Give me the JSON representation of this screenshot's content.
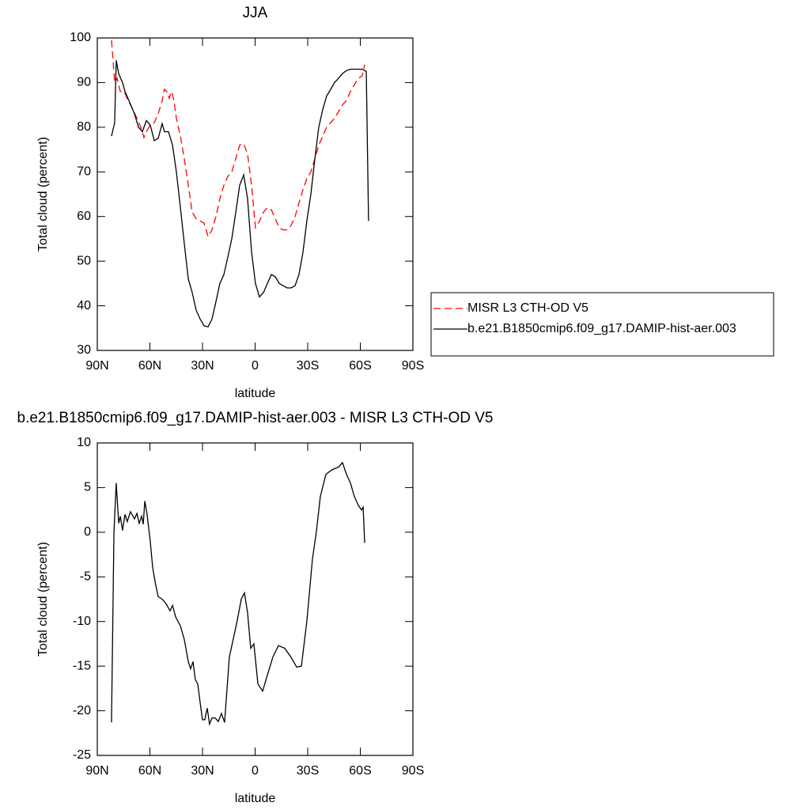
{
  "chart_data": [
    {
      "type": "line",
      "title": "JJA",
      "xlabel": "latitude",
      "ylabel": "Total cloud (percent)",
      "xlim": [
        90,
        -90
      ],
      "xticks": [
        {
          "value": 90,
          "label": "90N"
        },
        {
          "value": 60,
          "label": "60N"
        },
        {
          "value": 30,
          "label": "30N"
        },
        0,
        {
          "value": -30,
          "label": "30S"
        },
        {
          "value": -60,
          "label": "60S"
        },
        {
          "value": -90,
          "label": "90S"
        }
      ],
      "ylim": [
        30,
        100
      ],
      "yticks": [
        30,
        40,
        50,
        60,
        70,
        80,
        90,
        100
      ],
      "legend": "right",
      "series": [
        {
          "name": "MISR L3 CTH-OD V5",
          "color": "#ff0000",
          "line_style": "dashed",
          "x": [
            81.9,
            81,
            80.1,
            78.7,
            76.9,
            74.7,
            72.4,
            69.7,
            67.4,
            65.2,
            63.4,
            62,
            59.8,
            57.5,
            55.3,
            53,
            51.7,
            50.3,
            49,
            47.6,
            46.3,
            44.9,
            42.6,
            40.4,
            38.1,
            35.9,
            33.6,
            31.3,
            29.1,
            26.8,
            24.6,
            22.3,
            20.1,
            17.8,
            15.5,
            13.3,
            11,
            8.8,
            6.5,
            4.3,
            2,
            -0.2,
            -2.5,
            -4.8,
            -7,
            -9.3,
            -11.5,
            -13.8,
            -16,
            -18.3,
            -20.5,
            -22.8,
            -25,
            -27.3,
            -29.5,
            -31.8,
            -34.1,
            -36.3,
            -38.6,
            -40.8,
            -43.1,
            -45.3,
            -47.6,
            -49.8,
            -52.1,
            -54.4,
            -56.6,
            -58.9,
            -61.1,
            -62.5
          ],
          "values": [
            99.5,
            95,
            90,
            91,
            88,
            88,
            86,
            84,
            82,
            80,
            77.7,
            79,
            80.5,
            81,
            83,
            86,
            88.5,
            88,
            86.5,
            88,
            86,
            82,
            78,
            73,
            67,
            61,
            59.5,
            59,
            58.5,
            55.5,
            57,
            60,
            64,
            67,
            69,
            70,
            73,
            76,
            76.3,
            74,
            67,
            57.5,
            59,
            61,
            62,
            61.5,
            59.5,
            57.5,
            57,
            57,
            58,
            60,
            63,
            66,
            68.5,
            70,
            73,
            76,
            78,
            80,
            81,
            82,
            83.5,
            85,
            86,
            88,
            89.5,
            91,
            91.5,
            94
          ]
        },
        {
          "name": "b.e21.B1850cmip6.f09_g17.DAMIP-hist-aer.003",
          "color": "#000000",
          "line_style": "solid",
          "x": [
            81.9,
            80.1,
            79.2,
            77.8,
            75.6,
            74.2,
            72,
            68.8,
            66.5,
            64.3,
            62,
            59.8,
            57.5,
            55.3,
            53,
            51.7,
            49.4,
            47.1,
            44.9,
            42.6,
            40.4,
            38.1,
            35.9,
            33.6,
            31.3,
            29.1,
            26.8,
            24.6,
            22.3,
            20.1,
            17.8,
            15.5,
            13.3,
            11,
            8.8,
            6.5,
            4.3,
            2,
            -0.2,
            -2.5,
            -4.8,
            -7,
            -9.3,
            -11.5,
            -13.8,
            -16,
            -18.3,
            -20.5,
            -22.8,
            -25,
            -27.3,
            -29.5,
            -31.8,
            -34.1,
            -36.3,
            -38.6,
            -40.8,
            -43.1,
            -45.3,
            -47.6,
            -49.8,
            -52.1,
            -54.4,
            -56.6,
            -58.9,
            -61.1,
            -63.4,
            -64.7
          ],
          "values": [
            78,
            81,
            95,
            92,
            90,
            88,
            86,
            83,
            80,
            79,
            81.5,
            80.5,
            77,
            77.5,
            80.8,
            79,
            79,
            76,
            70,
            62,
            54,
            46,
            43,
            39,
            37,
            35.5,
            35.3,
            37,
            41,
            45,
            47,
            51,
            55,
            61,
            67,
            69.3,
            64,
            52,
            45,
            42,
            43,
            45,
            47,
            46.5,
            45,
            44.5,
            44,
            44,
            44.5,
            47,
            52,
            59,
            65,
            73,
            80,
            84,
            87,
            88.5,
            90,
            91,
            92,
            92.7,
            93,
            93,
            93,
            93,
            92.5,
            59
          ]
        }
      ]
    },
    {
      "type": "line",
      "title": "b.e21.B1850cmip6.f09_g17.DAMIP-hist-aer.003 - MISR L3 CTH-OD V5",
      "xlabel": "latitude",
      "ylabel": "Total cloud (percent)",
      "xlim": [
        90,
        -90
      ],
      "xticks": [
        {
          "value": 90,
          "label": "90N"
        },
        {
          "value": 60,
          "label": "60N"
        },
        {
          "value": 30,
          "label": "30N"
        },
        0,
        {
          "value": -30,
          "label": "30S"
        },
        {
          "value": -60,
          "label": "60S"
        },
        {
          "value": -90,
          "label": "90S"
        }
      ],
      "ylim": [
        -25,
        10
      ],
      "yticks": [
        -25,
        -20,
        -15,
        -10,
        -5,
        0,
        5,
        10
      ],
      "series": [
        {
          "color": "#000000",
          "line_style": "solid",
          "x": [
            81.9,
            80.5,
            79.2,
            77.8,
            76.9,
            75.6,
            74.2,
            72.9,
            71.1,
            68.8,
            67.4,
            66.1,
            64.7,
            63.8,
            62.9,
            61.6,
            59.8,
            58.4,
            56.6,
            55.3,
            53,
            50.8,
            48.5,
            47.1,
            45.3,
            42.6,
            40.4,
            38.1,
            36.8,
            35.4,
            34.1,
            32.7,
            31.4,
            30,
            28.7,
            27.3,
            26,
            24.6,
            22.8,
            21,
            19.2,
            17.4,
            14.7,
            10.3,
            7.9,
            6.1,
            4.3,
            2.5,
            0.7,
            -1.6,
            -4.3,
            -7,
            -10.1,
            -13.3,
            -16.9,
            -20.5,
            -23.7,
            -26.4,
            -29.5,
            -32.7,
            -34.9,
            -37.2,
            -40.4,
            -43.9,
            -47.6,
            -49.8,
            -52.1,
            -54.4,
            -56.6,
            -58.9,
            -60.7,
            -61.6,
            -62.5
          ],
          "values": [
            -21.3,
            0,
            5.5,
            1,
            1.8,
            0.2,
            2,
            1.2,
            2.3,
            1.5,
            2.1,
            1,
            1.8,
            0.9,
            3.5,
            2,
            -1,
            -4,
            -6,
            -7.2,
            -7.5,
            -8,
            -8.8,
            -8.2,
            -9.5,
            -10.5,
            -12,
            -14.5,
            -15.3,
            -14.5,
            -16.5,
            -17,
            -19,
            -21,
            -21,
            -19.7,
            -21.5,
            -20.8,
            -20.8,
            -21.2,
            -20.3,
            -21.3,
            -14,
            -10,
            -7.5,
            -6.8,
            -9,
            -13,
            -12.5,
            -17,
            -17.8,
            -16,
            -14,
            -12.7,
            -13,
            -14,
            -15.1,
            -15,
            -10,
            -3,
            0,
            4,
            6.5,
            7,
            7.3,
            7.8,
            6.5,
            5.5,
            4,
            3,
            2.5,
            2.8,
            -1.2
          ]
        }
      ]
    }
  ]
}
